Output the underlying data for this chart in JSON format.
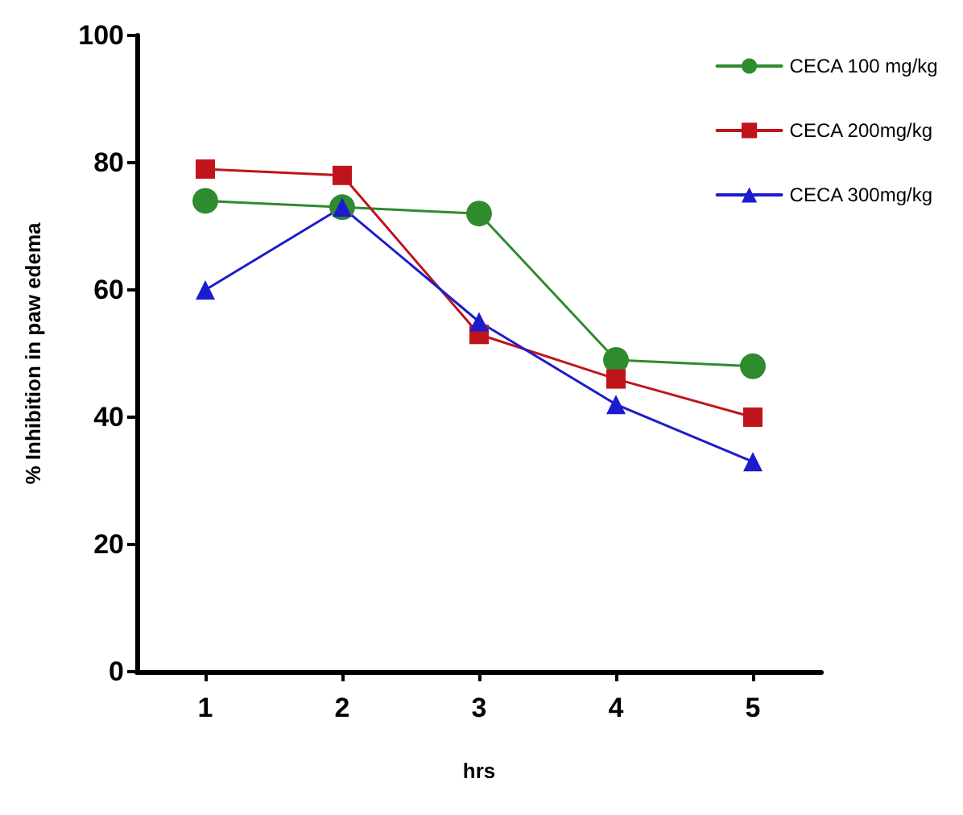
{
  "chart_data": {
    "type": "line",
    "xlabel": "hrs",
    "ylabel": "% Inhibition in paw edema",
    "x": [
      1,
      2,
      3,
      4,
      5
    ],
    "xlim": [
      0.5,
      5.5
    ],
    "xticks": [
      1,
      2,
      3,
      4,
      5
    ],
    "ylim": [
      0,
      100
    ],
    "yticks": [
      0,
      20,
      40,
      60,
      80,
      100
    ],
    "grid": false,
    "legend": "top right",
    "series": [
      {
        "name": "CECA 100 mg/kg",
        "color": "#2e8b2e",
        "marker": "circle",
        "values": [
          74,
          73,
          72,
          49,
          48
        ]
      },
      {
        "name": "CECA 200mg/kg",
        "color": "#c0141c",
        "marker": "square",
        "values": [
          79,
          78,
          53,
          46,
          40
        ]
      },
      {
        "name": "CECA 300mg/kg",
        "color": "#1c1ccc",
        "marker": "triangle",
        "values": [
          60,
          73,
          55,
          42,
          33
        ]
      }
    ]
  }
}
